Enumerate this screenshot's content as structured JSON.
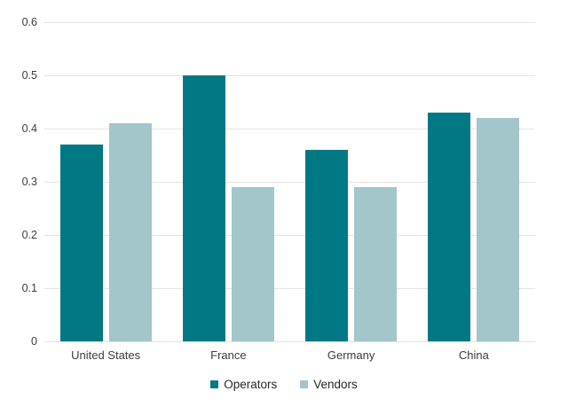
{
  "chart_data": {
    "type": "bar",
    "title": "",
    "xlabel": "",
    "ylabel": "",
    "categories": [
      "United States",
      "France",
      "Germany",
      "China"
    ],
    "series": [
      {
        "name": "Operators",
        "color": "#017985",
        "values": [
          0.37,
          0.5,
          0.36,
          0.43
        ]
      },
      {
        "name": "Vendors",
        "color": "#a2c6ca",
        "values": [
          0.41,
          0.29,
          0.29,
          0.42
        ]
      }
    ],
    "ylim": [
      0,
      0.6
    ],
    "yticks": [
      "0",
      "0.1",
      "0.2",
      "0.3",
      "0.4",
      "0.5",
      "0.6"
    ],
    "grid": true,
    "gridline_color": "#e4e4e4",
    "legend_position": "bottom",
    "background_color": "#ffffff",
    "text_color": "#3d3d3d"
  }
}
